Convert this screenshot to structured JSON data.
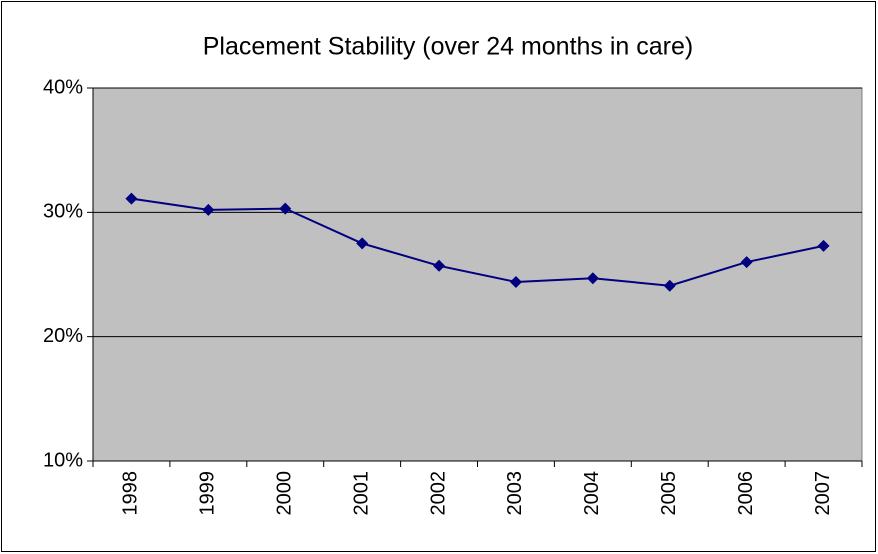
{
  "chart_data": {
    "type": "line",
    "title": "Placement Stability (over 24 months in care)",
    "categories": [
      "1998",
      "1999",
      "2000",
      "2001",
      "2002",
      "2003",
      "2004",
      "2005",
      "2006",
      "2007"
    ],
    "values": [
      31.1,
      30.2,
      30.3,
      27.5,
      25.7,
      24.4,
      24.7,
      24.1,
      26.0,
      27.3
    ],
    "color": "#000080",
    "ylim": [
      10,
      40
    ],
    "yticks": [
      {
        "value": 10,
        "label": "10%"
      },
      {
        "value": 20,
        "label": "20%"
      },
      {
        "value": 30,
        "label": "30%"
      },
      {
        "value": 40,
        "label": "40%"
      }
    ],
    "grid": true
  }
}
